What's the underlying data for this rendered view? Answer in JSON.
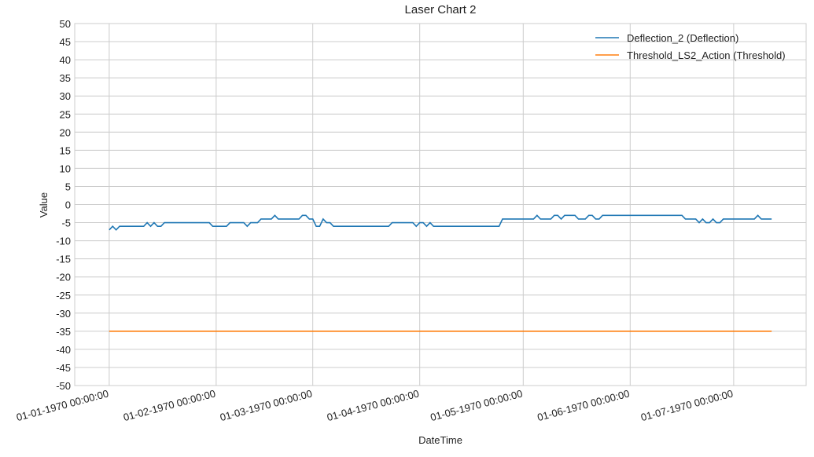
{
  "chart_data": {
    "type": "line",
    "title": "Laser Chart 2",
    "x_label": "DateTime",
    "y_label": "Value",
    "xlim": [
      "1969-12-22",
      "1970-07-22"
    ],
    "xticks": [
      {
        "value": "1970-01-01",
        "label": "01-01-1970 00:00:00"
      },
      {
        "value": "1970-02-01",
        "label": "01-02-1970 00:00:00"
      },
      {
        "value": "1970-03-01",
        "label": "01-03-1970 00:00:00"
      },
      {
        "value": "1970-04-01",
        "label": "01-04-1970 00:00:00"
      },
      {
        "value": "1970-05-01",
        "label": "01-05-1970 00:00:00"
      },
      {
        "value": "1970-06-01",
        "label": "01-06-1970 00:00:00"
      },
      {
        "value": "1970-07-01",
        "label": "01-07-1970 00:00:00"
      }
    ],
    "ylim": [
      -50,
      50
    ],
    "yticks": [
      -50,
      -45,
      -40,
      -35,
      -30,
      -25,
      -20,
      -15,
      -10,
      -5,
      0,
      5,
      10,
      15,
      20,
      25,
      30,
      35,
      40,
      45,
      50
    ],
    "grid": true,
    "legend": "upper right",
    "series": [
      {
        "name": "Deflection_2 (Deflection)",
        "color": "#1f77b4",
        "x": [
          "1970-01-01",
          "1970-01-02",
          "1970-01-03",
          "1970-01-04",
          "1970-01-11",
          "1970-01-12",
          "1970-01-13",
          "1970-01-14",
          "1970-01-15",
          "1970-01-16",
          "1970-01-17",
          "1970-01-30",
          "1970-01-31",
          "1970-02-04",
          "1970-02-05",
          "1970-02-09",
          "1970-02-10",
          "1970-02-11",
          "1970-02-13",
          "1970-02-14",
          "1970-02-17",
          "1970-02-18",
          "1970-02-19",
          "1970-02-25",
          "1970-02-26",
          "1970-02-27",
          "1970-02-28",
          "1970-03-01",
          "1970-03-02",
          "1970-03-03",
          "1970-03-04",
          "1970-03-05",
          "1970-03-06",
          "1970-03-07",
          "1970-03-23",
          "1970-03-24",
          "1970-03-30",
          "1970-03-31",
          "1970-04-01",
          "1970-04-02",
          "1970-04-03",
          "1970-04-04",
          "1970-04-05",
          "1970-04-24",
          "1970-04-25",
          "1970-05-04",
          "1970-05-05",
          "1970-05-06",
          "1970-05-09",
          "1970-05-10",
          "1970-05-11",
          "1970-05-12",
          "1970-05-13",
          "1970-05-16",
          "1970-05-17",
          "1970-05-19",
          "1970-05-20",
          "1970-05-21",
          "1970-05-22",
          "1970-05-23",
          "1970-05-24",
          "1970-06-16",
          "1970-06-17",
          "1970-06-20",
          "1970-06-21",
          "1970-06-22",
          "1970-06-23",
          "1970-06-24",
          "1970-06-25",
          "1970-06-26",
          "1970-06-27",
          "1970-06-28",
          "1970-07-07",
          "1970-07-08",
          "1970-07-09",
          "1970-07-12"
        ],
        "values": [
          -7,
          -6,
          -7,
          -6,
          -6,
          -5,
          -6,
          -5,
          -6,
          -6,
          -5,
          -5,
          -6,
          -6,
          -5,
          -5,
          -6,
          -5,
          -5,
          -4,
          -4,
          -3,
          -4,
          -4,
          -3,
          -3,
          -4,
          -4,
          -6,
          -6,
          -4,
          -5,
          -5,
          -6,
          -6,
          -5,
          -5,
          -6,
          -5,
          -5,
          -6,
          -5,
          -6,
          -6,
          -4,
          -4,
          -3,
          -4,
          -4,
          -3,
          -3,
          -4,
          -3,
          -3,
          -4,
          -4,
          -3,
          -3,
          -4,
          -4,
          -3,
          -3,
          -4,
          -4,
          -5,
          -4,
          -5,
          -5,
          -4,
          -5,
          -5,
          -4,
          -4,
          -3,
          -4,
          -4
        ]
      },
      {
        "name": "Threshold_LS2_Action (Threshold)",
        "color": "#ff7f0e",
        "x": [
          "1970-01-01",
          "1970-07-12"
        ],
        "values": [
          -35,
          -35
        ]
      }
    ]
  }
}
